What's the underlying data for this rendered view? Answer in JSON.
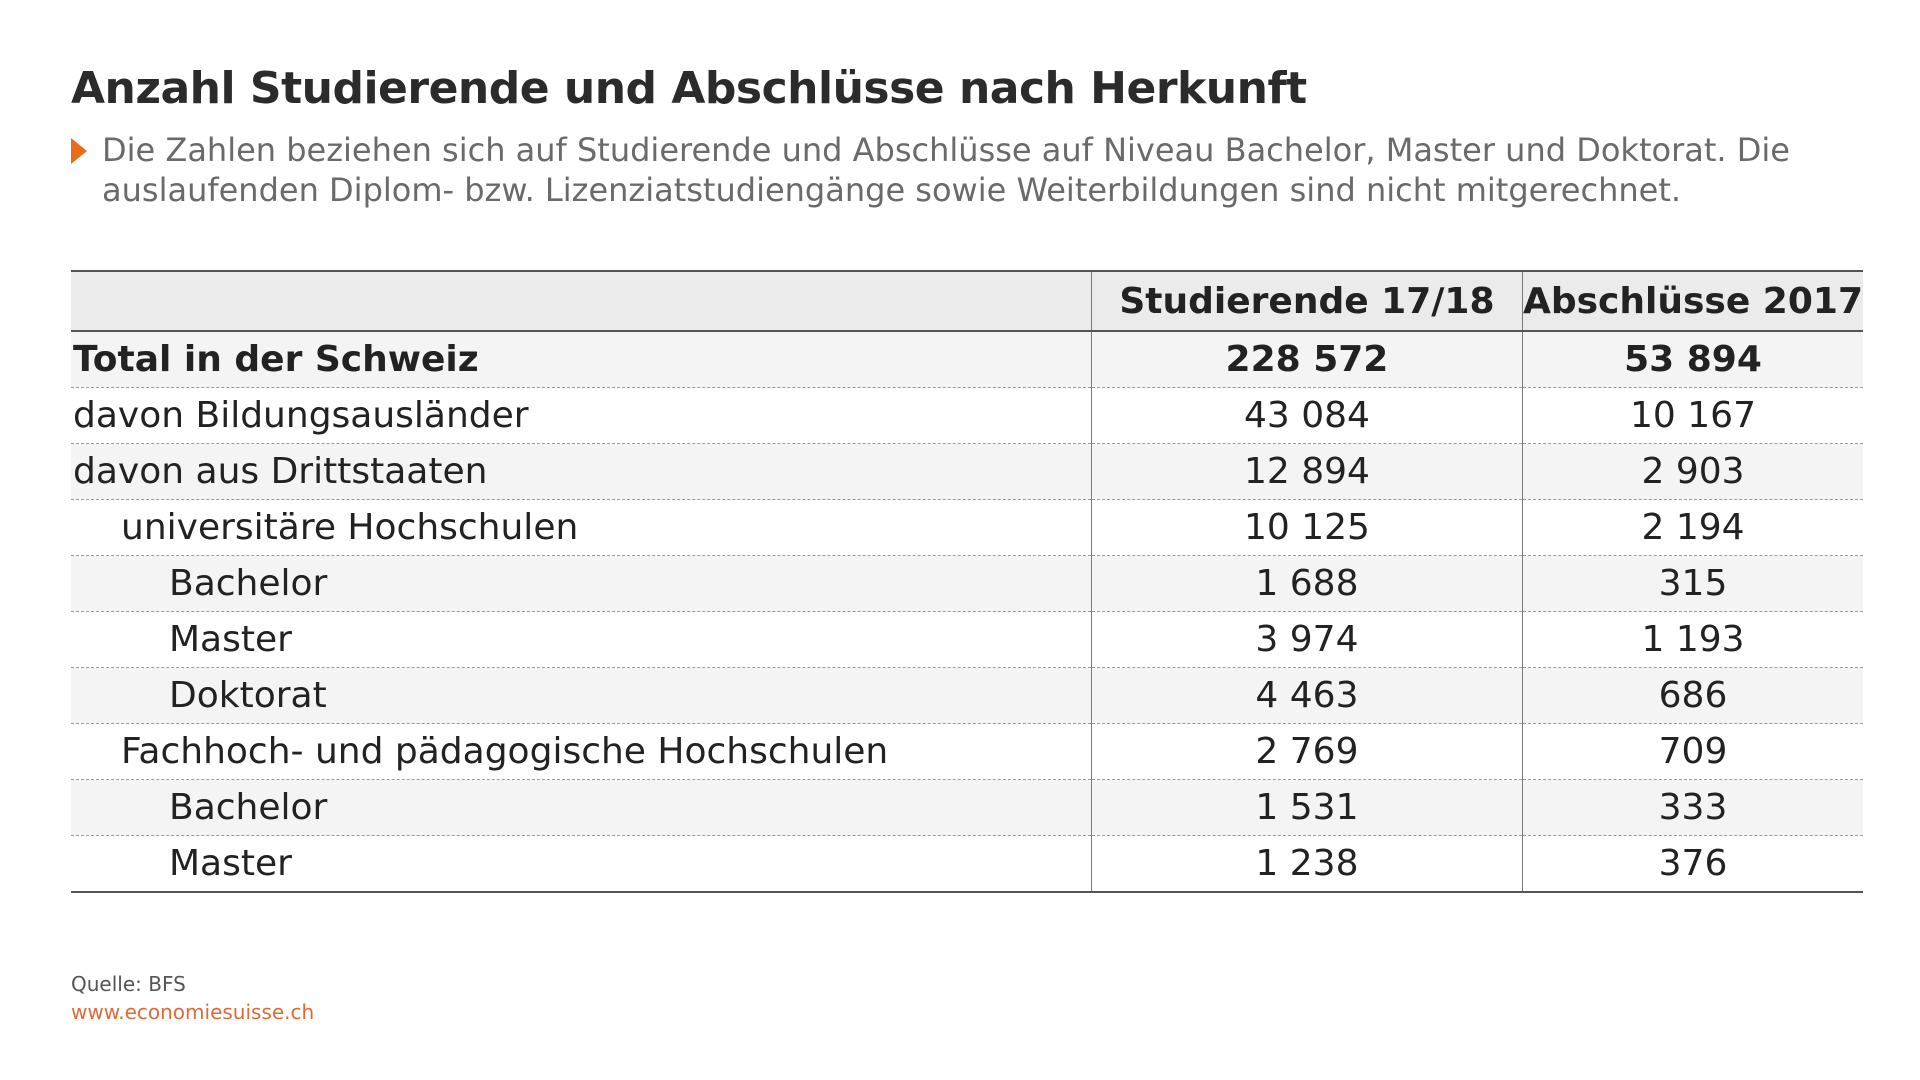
{
  "title": "Anzahl Studierende und Abschlüsse nach Herkunft",
  "subtitle": "Die Zahlen beziehen sich auf Studierende und Abschlüsse auf Niveau Bachelor, Master und Doktorat. Die auslaufenden Diplom- bzw. Lizenziatstudiengänge sowie Weiterbildungen sind nicht mitgerechnet.",
  "colors": {
    "accent": "#ec6b1b",
    "link": "#e06a35",
    "header_bg": "#ebebeb",
    "row_shade": "#f4f4f4"
  },
  "chart_data": {
    "type": "table",
    "columns": [
      "",
      "Studierende 17/18",
      "Abschlüsse 2017"
    ],
    "rows": [
      {
        "label": "Total in der Schweiz",
        "values": [
          "228 572",
          "53 894"
        ],
        "level": 0,
        "bold": true
      },
      {
        "label": "davon Bildungsausländer",
        "values": [
          "43 084",
          "10 167"
        ],
        "level": 0,
        "bold": false
      },
      {
        "label": "davon aus Drittstaaten",
        "values": [
          "12 894",
          "2 903"
        ],
        "level": 0,
        "bold": false
      },
      {
        "label": "universitäre Hochschulen",
        "values": [
          "10 125",
          "2 194"
        ],
        "level": 1,
        "bold": false
      },
      {
        "label": "Bachelor",
        "values": [
          "1 688",
          "315"
        ],
        "level": 2,
        "bold": false
      },
      {
        "label": "Master",
        "values": [
          "3 974",
          "1 193"
        ],
        "level": 2,
        "bold": false
      },
      {
        "label": "Doktorat",
        "values": [
          "4 463",
          "686"
        ],
        "level": 2,
        "bold": false
      },
      {
        "label": "Fachhoch- und pädagogische Hochschulen",
        "values": [
          "2 769",
          "709"
        ],
        "level": 1,
        "bold": false
      },
      {
        "label": "Bachelor",
        "values": [
          "1 531",
          "333"
        ],
        "level": 2,
        "bold": false
      },
      {
        "label": "Master",
        "values": [
          "1 238",
          "376"
        ],
        "level": 2,
        "bold": false
      }
    ]
  },
  "footer": {
    "source": "Quelle: BFS",
    "url": "www.economiesuisse.ch"
  }
}
